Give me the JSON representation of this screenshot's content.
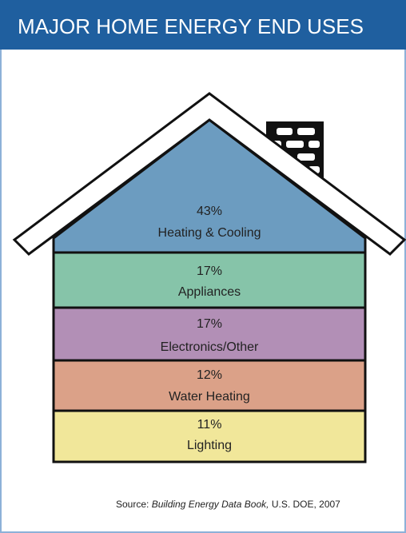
{
  "chart_data": {
    "type": "house",
    "title": "MAJOR HOME ENERGY END USES",
    "categories": [
      "Heating & Cooling",
      "Appliances",
      "Electronics/Other",
      "Water Heating",
      "Lighting"
    ],
    "values": [
      43,
      17,
      17,
      12,
      11
    ],
    "value_labels": [
      "43%",
      "17%",
      "17%",
      "12%",
      "11%"
    ],
    "colors": [
      "#6c9cc0",
      "#86c4a9",
      "#b28fb6",
      "#dba188",
      "#f1e79a"
    ],
    "source": {
      "prefix": "Source:",
      "title": "Building Energy Data Book,",
      "suffix": "U.S. DOE, 2007"
    }
  }
}
